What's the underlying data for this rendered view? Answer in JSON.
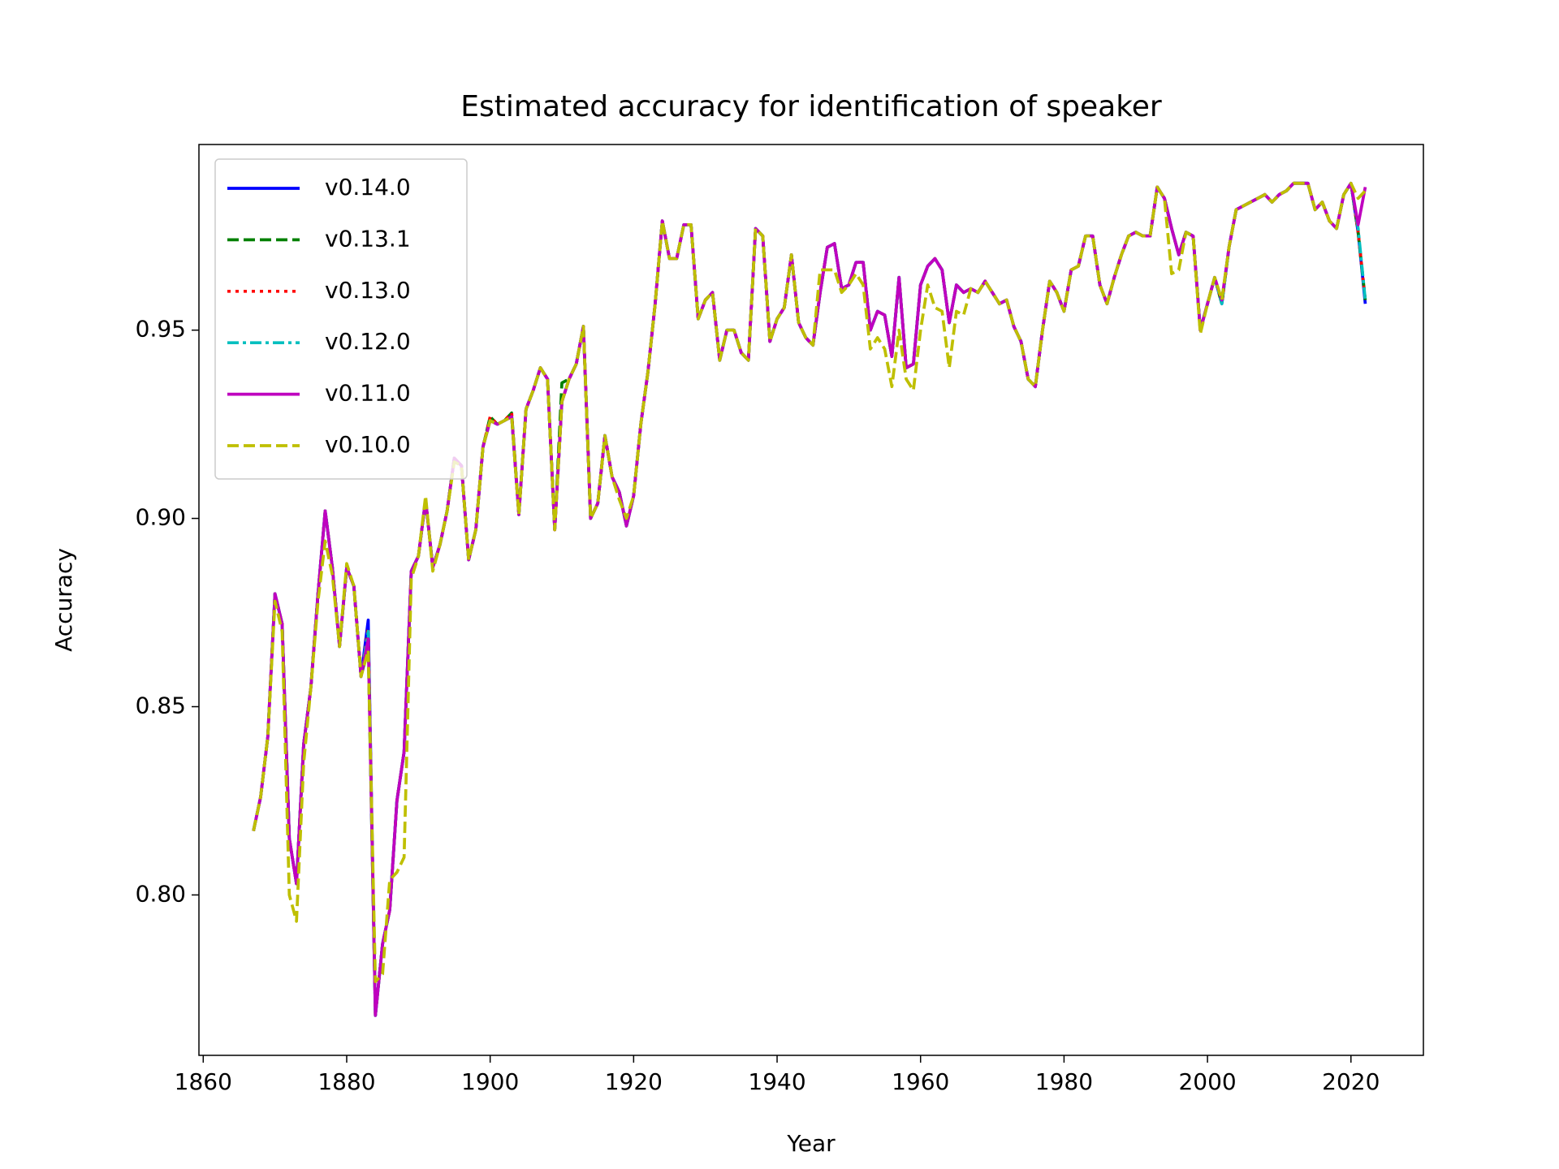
{
  "chart_data": {
    "type": "line",
    "title": "Estimated accuracy for identification of speaker",
    "xlabel": "Year",
    "ylabel": "Accuracy",
    "xlim": [
      1859.4,
      2030.1
    ],
    "ylim": [
      0.7574,
      0.9993
    ],
    "xticks": [
      1860,
      1880,
      1900,
      1920,
      1940,
      1960,
      1980,
      2000,
      2020
    ],
    "yticks": [
      {
        "value": 0.8,
        "label": "0.80"
      },
      {
        "value": 0.85,
        "label": "0.85"
      },
      {
        "value": 0.9,
        "label": "0.90"
      },
      {
        "value": 0.95,
        "label": "0.95"
      }
    ],
    "legend": "upper left",
    "x": [
      1867,
      1868,
      1869,
      1870,
      1871,
      1872,
      1873,
      1874,
      1875,
      1876,
      1877,
      1878,
      1879,
      1880,
      1881,
      1882,
      1883,
      1884,
      1885,
      1886,
      1887,
      1888,
      1889,
      1890,
      1891,
      1892,
      1893,
      1894,
      1895,
      1896,
      1897,
      1898,
      1899,
      1900,
      1901,
      1902,
      1903,
      1904,
      1905,
      1906,
      1907,
      1908,
      1909,
      1910,
      1911,
      1912,
      1913,
      1914,
      1915,
      1916,
      1917,
      1918,
      1919,
      1920,
      1921,
      1922,
      1923,
      1924,
      1925,
      1926,
      1927,
      1928,
      1929,
      1930,
      1931,
      1932,
      1933,
      1934,
      1935,
      1936,
      1937,
      1938,
      1939,
      1940,
      1941,
      1942,
      1943,
      1944,
      1945,
      1946,
      1947,
      1948,
      1949,
      1950,
      1951,
      1952,
      1953,
      1954,
      1955,
      1956,
      1957,
      1958,
      1959,
      1960,
      1961,
      1962,
      1963,
      1964,
      1965,
      1966,
      1967,
      1968,
      1969,
      1970,
      1971,
      1972,
      1973,
      1974,
      1975,
      1976,
      1977,
      1978,
      1979,
      1980,
      1981,
      1982,
      1983,
      1984,
      1985,
      1986,
      1987,
      1988,
      1989,
      1990,
      1991,
      1992,
      1993,
      1994,
      1995,
      1996,
      1997,
      1998,
      1999,
      2000,
      2001,
      2002,
      2003,
      2004,
      2005,
      2006,
      2007,
      2008,
      2009,
      2010,
      2011,
      2012,
      2013,
      2014,
      2015,
      2016,
      2017,
      2018,
      2019,
      2020,
      2021,
      2022
    ],
    "series": [
      {
        "name": "v0.14.0",
        "color": "#0000ff",
        "dash": "solid",
        "values": [
          0.817,
          0.826,
          0.842,
          0.88,
          0.872,
          0.815,
          0.803,
          0.84,
          0.855,
          0.88,
          0.902,
          0.887,
          0.866,
          0.887,
          0.882,
          0.858,
          0.873,
          0.768,
          0.787,
          0.796,
          0.825,
          0.838,
          0.886,
          0.89,
          0.905,
          0.887,
          0.893,
          0.902,
          0.916,
          0.914,
          0.889,
          0.897,
          0.919,
          0.926,
          0.925,
          0.926,
          0.927,
          0.901,
          0.929,
          0.934,
          0.94,
          0.937,
          0.897,
          0.931,
          0.937,
          0.941,
          0.951,
          0.9,
          0.904,
          0.922,
          0.911,
          0.907,
          0.898,
          0.906,
          0.925,
          0.939,
          0.957,
          0.979,
          0.969,
          0.969,
          0.978,
          0.978,
          0.953,
          0.958,
          0.96,
          0.942,
          0.95,
          0.95,
          0.944,
          0.942,
          0.977,
          0.975,
          0.947,
          0.953,
          0.956,
          0.97,
          0.952,
          0.948,
          0.946,
          0.96,
          0.972,
          0.973,
          0.961,
          0.962,
          0.968,
          0.968,
          0.95,
          0.955,
          0.954,
          0.943,
          0.964,
          0.94,
          0.941,
          0.962,
          0.967,
          0.969,
          0.966,
          0.952,
          0.962,
          0.96,
          0.961,
          0.96,
          0.963,
          0.96,
          0.957,
          0.958,
          0.951,
          0.947,
          0.937,
          0.935,
          0.95,
          0.963,
          0.96,
          0.955,
          0.966,
          0.967,
          0.975,
          0.975,
          0.962,
          0.957,
          0.964,
          0.97,
          0.975,
          0.976,
          0.975,
          0.975,
          0.988,
          0.985,
          0.977,
          0.97,
          0.976,
          0.975,
          0.95,
          0.957,
          0.964,
          0.957,
          0.972,
          0.982,
          0.983,
          0.984,
          0.985,
          0.986,
          0.984,
          0.986,
          0.987,
          0.989,
          0.989,
          0.989,
          0.982,
          0.984,
          0.979,
          0.977,
          0.986,
          0.989,
          0.976,
          0.957
        ]
      },
      {
        "name": "v0.13.1",
        "color": "#008000",
        "dash": "dashed",
        "values": [
          0.817,
          0.826,
          0.842,
          0.88,
          0.872,
          0.815,
          0.803,
          0.84,
          0.855,
          0.88,
          0.902,
          0.887,
          0.866,
          0.887,
          0.882,
          0.858,
          0.866,
          0.768,
          0.787,
          0.796,
          0.825,
          0.838,
          0.886,
          0.89,
          0.905,
          0.887,
          0.893,
          0.902,
          0.916,
          0.914,
          0.889,
          0.897,
          0.919,
          0.927,
          0.925,
          0.926,
          0.928,
          0.901,
          0.929,
          0.934,
          0.94,
          0.937,
          0.897,
          0.936,
          0.937,
          0.941,
          0.951,
          0.9,
          0.904,
          0.922,
          0.911,
          0.907,
          0.898,
          0.906,
          0.925,
          0.939,
          0.957,
          0.979,
          0.969,
          0.969,
          0.978,
          0.978,
          0.953,
          0.958,
          0.96,
          0.942,
          0.95,
          0.95,
          0.944,
          0.942,
          0.977,
          0.975,
          0.947,
          0.953,
          0.956,
          0.97,
          0.952,
          0.948,
          0.946,
          0.96,
          0.972,
          0.973,
          0.961,
          0.962,
          0.968,
          0.968,
          0.95,
          0.955,
          0.954,
          0.943,
          0.964,
          0.94,
          0.941,
          0.962,
          0.967,
          0.969,
          0.966,
          0.952,
          0.962,
          0.96,
          0.961,
          0.96,
          0.963,
          0.96,
          0.957,
          0.958,
          0.951,
          0.947,
          0.937,
          0.935,
          0.95,
          0.963,
          0.96,
          0.955,
          0.966,
          0.967,
          0.975,
          0.975,
          0.962,
          0.957,
          0.964,
          0.97,
          0.975,
          0.976,
          0.975,
          0.975,
          0.988,
          0.985,
          0.977,
          0.97,
          0.976,
          0.975,
          0.95,
          0.957,
          0.964,
          0.957,
          0.972,
          0.982,
          0.983,
          0.984,
          0.985,
          0.986,
          0.984,
          0.986,
          0.987,
          0.989,
          0.989,
          0.989,
          0.982,
          0.984,
          0.979,
          0.977,
          0.986,
          0.989,
          0.976,
          0.958
        ]
      },
      {
        "name": "v0.13.0",
        "color": "#ff0000",
        "dash": "dotted",
        "values": [
          0.817,
          0.826,
          0.842,
          0.88,
          0.872,
          0.815,
          0.803,
          0.84,
          0.855,
          0.88,
          0.902,
          0.887,
          0.866,
          0.887,
          0.882,
          0.858,
          0.871,
          0.768,
          0.787,
          0.796,
          0.825,
          0.838,
          0.886,
          0.89,
          0.905,
          0.887,
          0.893,
          0.902,
          0.916,
          0.914,
          0.889,
          0.897,
          0.919,
          0.927,
          0.925,
          0.926,
          0.928,
          0.901,
          0.929,
          0.934,
          0.94,
          0.937,
          0.897,
          0.931,
          0.937,
          0.941,
          0.951,
          0.9,
          0.904,
          0.922,
          0.911,
          0.907,
          0.898,
          0.906,
          0.925,
          0.939,
          0.957,
          0.979,
          0.969,
          0.969,
          0.978,
          0.978,
          0.953,
          0.958,
          0.96,
          0.942,
          0.95,
          0.95,
          0.944,
          0.942,
          0.977,
          0.975,
          0.947,
          0.953,
          0.956,
          0.97,
          0.952,
          0.948,
          0.946,
          0.96,
          0.972,
          0.973,
          0.961,
          0.962,
          0.968,
          0.968,
          0.95,
          0.955,
          0.954,
          0.943,
          0.964,
          0.94,
          0.941,
          0.962,
          0.967,
          0.969,
          0.966,
          0.952,
          0.962,
          0.96,
          0.961,
          0.96,
          0.963,
          0.96,
          0.957,
          0.958,
          0.951,
          0.947,
          0.937,
          0.935,
          0.95,
          0.963,
          0.96,
          0.955,
          0.966,
          0.967,
          0.975,
          0.975,
          0.962,
          0.957,
          0.964,
          0.97,
          0.975,
          0.976,
          0.975,
          0.975,
          0.988,
          0.985,
          0.977,
          0.97,
          0.976,
          0.975,
          0.95,
          0.957,
          0.964,
          0.957,
          0.972,
          0.982,
          0.983,
          0.984,
          0.985,
          0.986,
          0.984,
          0.986,
          0.987,
          0.989,
          0.989,
          0.989,
          0.982,
          0.984,
          0.979,
          0.977,
          0.986,
          0.989,
          0.976,
          0.958
        ]
      },
      {
        "name": "v0.12.0",
        "color": "#00bfbf",
        "dash": "dashdot",
        "values": [
          0.817,
          0.826,
          0.842,
          0.88,
          0.872,
          0.815,
          0.803,
          0.84,
          0.855,
          0.88,
          0.902,
          0.887,
          0.866,
          0.887,
          0.882,
          0.858,
          0.87,
          0.768,
          0.787,
          0.796,
          0.825,
          0.838,
          0.886,
          0.89,
          0.905,
          0.887,
          0.893,
          0.902,
          0.916,
          0.914,
          0.889,
          0.897,
          0.919,
          0.926,
          0.925,
          0.926,
          0.927,
          0.901,
          0.929,
          0.934,
          0.94,
          0.937,
          0.897,
          0.931,
          0.937,
          0.941,
          0.951,
          0.9,
          0.904,
          0.922,
          0.911,
          0.907,
          0.898,
          0.906,
          0.925,
          0.939,
          0.957,
          0.979,
          0.969,
          0.969,
          0.978,
          0.978,
          0.953,
          0.958,
          0.96,
          0.942,
          0.95,
          0.95,
          0.944,
          0.942,
          0.977,
          0.975,
          0.947,
          0.953,
          0.956,
          0.97,
          0.952,
          0.948,
          0.946,
          0.96,
          0.972,
          0.973,
          0.961,
          0.962,
          0.968,
          0.968,
          0.95,
          0.955,
          0.954,
          0.943,
          0.964,
          0.94,
          0.941,
          0.962,
          0.967,
          0.969,
          0.966,
          0.952,
          0.962,
          0.96,
          0.961,
          0.96,
          0.963,
          0.96,
          0.957,
          0.958,
          0.951,
          0.947,
          0.937,
          0.935,
          0.95,
          0.963,
          0.96,
          0.955,
          0.966,
          0.967,
          0.975,
          0.975,
          0.962,
          0.957,
          0.964,
          0.97,
          0.975,
          0.976,
          0.975,
          0.975,
          0.988,
          0.985,
          0.977,
          0.97,
          0.976,
          0.975,
          0.95,
          0.957,
          0.964,
          0.957,
          0.972,
          0.982,
          0.983,
          0.984,
          0.985,
          0.986,
          0.984,
          0.986,
          0.987,
          0.989,
          0.989,
          0.989,
          0.982,
          0.984,
          0.979,
          0.977,
          0.986,
          0.989,
          0.977,
          0.958
        ]
      },
      {
        "name": "v0.11.0",
        "color": "#bf00bf",
        "dash": "solid",
        "values": [
          0.817,
          0.826,
          0.842,
          0.88,
          0.872,
          0.815,
          0.803,
          0.84,
          0.855,
          0.88,
          0.902,
          0.887,
          0.866,
          0.887,
          0.882,
          0.858,
          0.868,
          0.768,
          0.787,
          0.796,
          0.825,
          0.838,
          0.886,
          0.89,
          0.905,
          0.887,
          0.893,
          0.902,
          0.916,
          0.914,
          0.889,
          0.897,
          0.919,
          0.926,
          0.925,
          0.926,
          0.927,
          0.901,
          0.929,
          0.934,
          0.94,
          0.937,
          0.897,
          0.931,
          0.937,
          0.941,
          0.951,
          0.9,
          0.904,
          0.922,
          0.911,
          0.907,
          0.898,
          0.906,
          0.925,
          0.939,
          0.957,
          0.979,
          0.969,
          0.969,
          0.978,
          0.978,
          0.953,
          0.958,
          0.96,
          0.942,
          0.95,
          0.95,
          0.944,
          0.942,
          0.977,
          0.975,
          0.947,
          0.953,
          0.956,
          0.97,
          0.952,
          0.948,
          0.946,
          0.96,
          0.972,
          0.973,
          0.961,
          0.962,
          0.968,
          0.968,
          0.95,
          0.955,
          0.954,
          0.943,
          0.964,
          0.94,
          0.941,
          0.962,
          0.967,
          0.969,
          0.966,
          0.952,
          0.962,
          0.96,
          0.961,
          0.96,
          0.963,
          0.96,
          0.957,
          0.958,
          0.951,
          0.947,
          0.937,
          0.935,
          0.95,
          0.963,
          0.96,
          0.955,
          0.966,
          0.967,
          0.975,
          0.975,
          0.962,
          0.957,
          0.964,
          0.97,
          0.975,
          0.976,
          0.975,
          0.975,
          0.988,
          0.985,
          0.977,
          0.97,
          0.976,
          0.975,
          0.95,
          0.957,
          0.964,
          0.958,
          0.972,
          0.982,
          0.983,
          0.984,
          0.985,
          0.986,
          0.984,
          0.986,
          0.987,
          0.989,
          0.989,
          0.989,
          0.982,
          0.984,
          0.979,
          0.977,
          0.986,
          0.989,
          0.978,
          0.988
        ]
      },
      {
        "name": "v0.10.0",
        "color": "#bfbf00",
        "dash": "dashed",
        "values": [
          0.817,
          0.826,
          0.842,
          0.878,
          0.87,
          0.8,
          0.793,
          0.835,
          0.855,
          0.878,
          0.894,
          0.885,
          0.866,
          0.888,
          0.882,
          0.858,
          0.865,
          0.777,
          0.779,
          0.804,
          0.806,
          0.81,
          0.884,
          0.89,
          0.906,
          0.886,
          0.893,
          0.902,
          0.915,
          0.914,
          0.889,
          0.897,
          0.919,
          0.926,
          0.925,
          0.926,
          0.927,
          0.901,
          0.929,
          0.934,
          0.94,
          0.937,
          0.897,
          0.931,
          0.937,
          0.941,
          0.951,
          0.9,
          0.904,
          0.922,
          0.911,
          0.905,
          0.9,
          0.906,
          0.925,
          0.939,
          0.957,
          0.979,
          0.969,
          0.969,
          0.978,
          0.978,
          0.953,
          0.958,
          0.96,
          0.942,
          0.95,
          0.95,
          0.944,
          0.942,
          0.977,
          0.975,
          0.947,
          0.953,
          0.956,
          0.97,
          0.952,
          0.948,
          0.946,
          0.966,
          0.966,
          0.966,
          0.96,
          0.962,
          0.965,
          0.962,
          0.945,
          0.948,
          0.945,
          0.935,
          0.95,
          0.937,
          0.934,
          0.95,
          0.962,
          0.956,
          0.955,
          0.94,
          0.955,
          0.954,
          0.961,
          0.96,
          0.963,
          0.96,
          0.957,
          0.958,
          0.951,
          0.947,
          0.937,
          0.935,
          0.95,
          0.963,
          0.96,
          0.955,
          0.966,
          0.967,
          0.975,
          0.975,
          0.962,
          0.957,
          0.964,
          0.97,
          0.975,
          0.976,
          0.975,
          0.975,
          0.988,
          0.985,
          0.965,
          0.966,
          0.976,
          0.975,
          0.949,
          0.957,
          0.964,
          0.958,
          0.972,
          0.982,
          0.983,
          0.984,
          0.985,
          0.986,
          0.984,
          0.986,
          0.987,
          0.989,
          0.989,
          0.989,
          0.982,
          0.984,
          0.979,
          0.977,
          0.986,
          0.989,
          0.985,
          0.987
        ]
      }
    ]
  }
}
